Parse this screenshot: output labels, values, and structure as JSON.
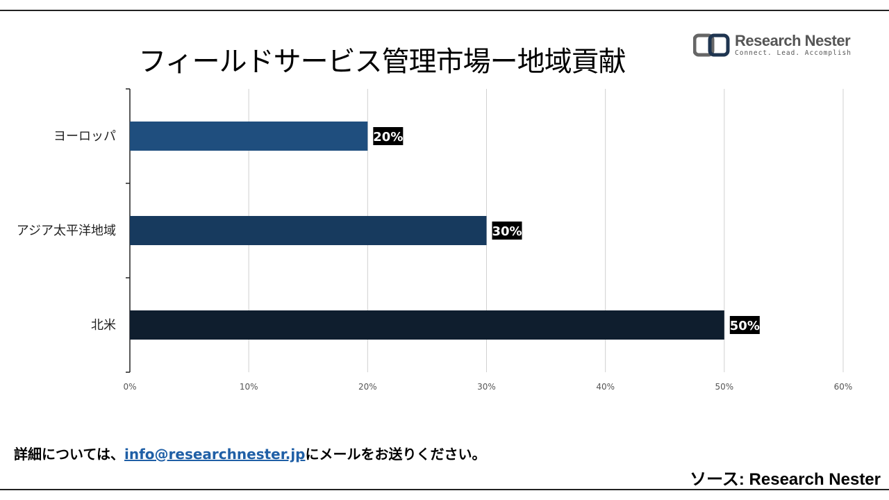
{
  "page": {
    "title": "フィールドサービス管理市場ー地域貢献",
    "logo": {
      "name": "Research Nester",
      "tagline": "Connect. Lead. Accomplish"
    },
    "footer": {
      "prefix": "詳細については、",
      "email": "info@researchnester.jp",
      "suffix": "にメールをお送りください。"
    },
    "source": "ソース: Research Nester"
  },
  "colors": {
    "bars": [
      "#1f4e7e",
      "#173a5e",
      "#0f1e2e"
    ],
    "grid": "#d0d0d0",
    "label_bg": "#000000",
    "label_fg": "#ffffff"
  },
  "chart_data": {
    "type": "bar",
    "orientation": "horizontal",
    "categories": [
      "ヨーロッパ",
      "アジア太平洋地域",
      "北米"
    ],
    "values": [
      20,
      30,
      50
    ],
    "data_labels": [
      "20%",
      "30%",
      "50%"
    ],
    "xlim": [
      0,
      60
    ],
    "x_ticks": [
      "0%",
      "10%",
      "20%",
      "30%",
      "40%",
      "50%",
      "60%"
    ],
    "grid": true,
    "legend": "none"
  }
}
